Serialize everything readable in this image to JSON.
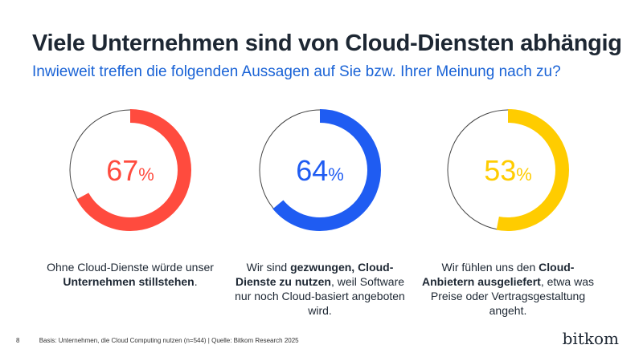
{
  "title": "Viele Unternehmen sind von Cloud-Diensten abhängig",
  "subtitle": "Inwieweit treffen die folgenden Aussagen auf Sie bzw. Ihrer Meinung nach zu?",
  "chart_data": [
    {
      "type": "pie",
      "style": "donut",
      "value": 67,
      "label": "67",
      "unit": "%",
      "color": "#ff4b3e",
      "caption": [
        {
          "t": "Ohne Cloud-Dienste würde unser ",
          "b": false
        },
        {
          "t": "Unternehmen stillstehen",
          "b": true
        },
        {
          "t": ".",
          "b": false
        }
      ]
    },
    {
      "type": "pie",
      "style": "donut",
      "value": 64,
      "label": "64",
      "unit": "%",
      "color": "#1f5cf2",
      "caption": [
        {
          "t": "Wir sind ",
          "b": false
        },
        {
          "t": "gezwungen, Cloud-Dienste zu nutzen",
          "b": true
        },
        {
          "t": ", weil Software nur noch Cloud-basiert angeboten wird.",
          "b": false
        }
      ]
    },
    {
      "type": "pie",
      "style": "donut",
      "value": 53,
      "label": "53",
      "unit": "%",
      "color": "#ffcc00",
      "caption": [
        {
          "t": "Wir fühlen uns den ",
          "b": false
        },
        {
          "t": "Cloud-Anbietern ausgeliefert",
          "b": true
        },
        {
          "t": ", etwa was Preise oder Vertragsgestaltung angeht.",
          "b": false
        }
      ]
    }
  ],
  "footer": {
    "page": "8",
    "source": "Basis: Unternehmen, die Cloud Computing nutzen (n=544) | Quelle: Bitkom Research 2025"
  },
  "logo": "bitkom"
}
